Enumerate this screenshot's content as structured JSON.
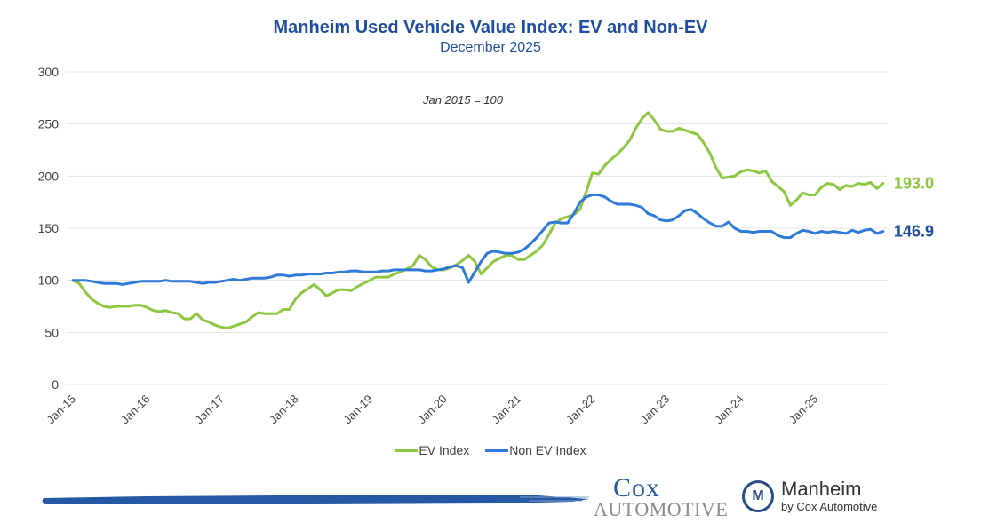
{
  "header": {
    "title": "Manheim Used Vehicle Value Index: EV and Non-EV",
    "subtitle": "December 2025"
  },
  "legend": {
    "items": [
      {
        "label": "EV Index",
        "color": "#8dc63f"
      },
      {
        "label": "Non EV Index",
        "color": "#2f7ad8"
      }
    ]
  },
  "footer": {
    "cox_line1": "Cox",
    "cox_line2": "Automotive",
    "manheim_name": "Manheim",
    "manheim_by": "by Cox Automotive",
    "manheim_logo_glyph": "M",
    "brand_color": "#1f4e9e"
  },
  "chart_data": {
    "type": "line",
    "title": "Manheim Used Vehicle Value Index: EV and Non-EV",
    "subtitle": "December 2025",
    "annotation": "Jan 2015 = 100",
    "xlabel": "",
    "ylabel": "",
    "ylim": [
      0,
      300
    ],
    "yticks": [
      0,
      50,
      100,
      150,
      200,
      250,
      300
    ],
    "grid": true,
    "legend_position": "bottom",
    "x_start": "Jan-15",
    "x_end": "Dec-25",
    "x_frequency": "monthly",
    "xtick_labels": [
      "Jan-15",
      "Jan-16",
      "Jan-17",
      "Jan-18",
      "Jan-19",
      "Jan-20",
      "Jan-21",
      "Jan-22",
      "Jan-23",
      "Jan-24",
      "Jan-25"
    ],
    "series": [
      {
        "name": "EV Index",
        "color": "#8dc63f",
        "end_label": "193.0",
        "values": [
          100,
          97,
          89,
          82,
          78,
          75,
          74,
          75,
          75,
          75,
          76,
          76,
          74,
          71,
          70,
          71,
          69,
          68,
          63,
          63,
          68,
          62,
          60,
          57,
          55,
          54,
          56,
          58,
          60,
          65,
          69,
          68,
          68,
          68,
          72,
          72,
          82,
          88,
          92,
          96,
          91,
          85,
          88,
          91,
          91,
          90,
          94,
          97,
          100,
          103,
          103,
          103,
          106,
          108,
          111,
          114,
          124,
          120,
          113,
          110,
          110,
          112,
          115,
          119,
          124,
          118,
          106,
          112,
          118,
          121,
          124,
          124,
          120,
          120,
          124,
          128,
          134,
          144,
          155,
          159,
          161,
          163,
          168,
          185,
          203,
          202,
          210,
          216,
          221,
          227,
          234,
          246,
          255,
          261,
          254,
          245,
          243,
          243,
          246,
          244,
          242,
          240,
          232,
          222,
          208,
          198,
          199,
          200,
          204,
          206,
          205,
          203,
          205,
          195,
          190,
          185,
          172,
          177,
          184,
          182,
          182,
          189,
          193,
          192,
          187,
          191,
          190,
          193,
          192,
          194,
          188,
          193.0
        ]
      },
      {
        "name": "Non EV Index",
        "color": "#2f7ad8",
        "end_label": "146.9",
        "values": [
          100,
          100,
          100,
          99,
          98,
          97,
          97,
          97,
          96,
          97,
          98,
          99,
          99,
          99,
          99,
          100,
          99,
          99,
          99,
          99,
          98,
          97,
          98,
          98,
          99,
          100,
          101,
          100,
          101,
          102,
          102,
          102,
          103,
          105,
          105,
          104,
          105,
          105,
          106,
          106,
          106,
          107,
          107,
          108,
          108,
          109,
          109,
          108,
          108,
          108,
          109,
          109,
          110,
          110,
          110,
          110,
          110,
          109,
          109,
          110,
          111,
          113,
          114,
          112,
          98,
          108,
          118,
          126,
          128,
          127,
          126,
          126,
          127,
          130,
          135,
          141,
          148,
          155,
          156,
          155,
          155,
          164,
          175,
          180,
          182,
          182,
          180,
          176,
          173,
          173,
          173,
          172,
          170,
          164,
          162,
          158,
          157,
          158,
          162,
          167,
          168,
          164,
          159,
          155,
          152,
          152,
          156,
          150,
          147,
          147,
          146,
          147,
          147,
          147,
          143,
          141,
          141,
          145,
          148,
          147,
          145,
          147,
          146,
          147,
          146,
          145,
          148,
          146,
          148,
          149,
          145,
          146.9
        ]
      }
    ]
  }
}
